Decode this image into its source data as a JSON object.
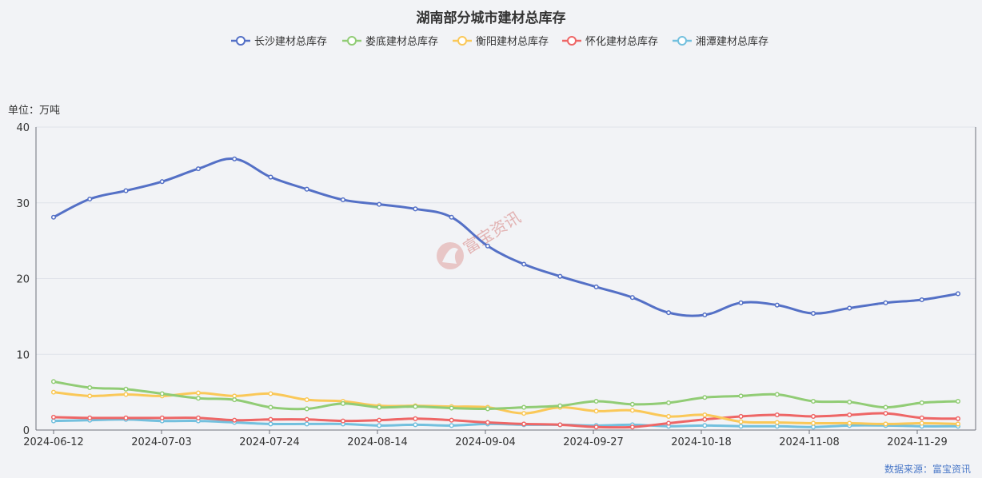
{
  "chart_data": {
    "type": "line",
    "title": "湖南部分城市建材总库存",
    "unit_label": "单位：万吨",
    "source": "数据来源：富宝资讯",
    "watermark": "富宝资讯",
    "ylim": [
      0,
      40
    ],
    "yticks": [
      0,
      10,
      20,
      30,
      40
    ],
    "xtick_labels": [
      "2024-06-12",
      "2024-07-03",
      "2024-07-24",
      "2024-08-14",
      "2024-09-04",
      "2024-09-27",
      "2024-10-18",
      "2024-11-08",
      "2024-11-29"
    ],
    "x": [
      "2024-06-12",
      "2024-06-19",
      "2024-06-26",
      "2024-07-03",
      "2024-07-10",
      "2024-07-17",
      "2024-07-24",
      "2024-07-31",
      "2024-08-07",
      "2024-08-14",
      "2024-08-21",
      "2024-08-28",
      "2024-09-04",
      "2024-09-11",
      "2024-09-18",
      "2024-09-27",
      "2024-10-04",
      "2024-10-11",
      "2024-10-18",
      "2024-10-25",
      "2024-11-01",
      "2024-11-08",
      "2024-11-15",
      "2024-11-22",
      "2024-11-29",
      "2024-12-06"
    ],
    "series": [
      {
        "name": "长沙建材总库存",
        "color": "#5470c6",
        "values": [
          28.1,
          30.5,
          31.6,
          32.8,
          34.5,
          35.8,
          33.4,
          31.8,
          30.4,
          29.8,
          29.2,
          28.1,
          24.3,
          21.9,
          20.3,
          18.9,
          17.5,
          15.5,
          15.2,
          16.8,
          16.5,
          15.4,
          16.1,
          16.8,
          17.2,
          18.0
        ]
      },
      {
        "name": "娄底建材总库存",
        "color": "#91cc75",
        "values": [
          6.4,
          5.6,
          5.4,
          4.8,
          4.2,
          4.0,
          3.0,
          2.8,
          3.5,
          3.0,
          3.1,
          2.9,
          2.8,
          3.0,
          3.2,
          3.8,
          3.4,
          3.6,
          4.3,
          4.5,
          4.7,
          3.8,
          3.7,
          3.0,
          3.6,
          3.8
        ]
      },
      {
        "name": "衡阳建材总库存",
        "color": "#fac858",
        "values": [
          5.0,
          4.5,
          4.7,
          4.5,
          4.9,
          4.5,
          4.8,
          4.0,
          3.8,
          3.2,
          3.2,
          3.1,
          3.0,
          2.2,
          3.0,
          2.5,
          2.6,
          1.8,
          2.0,
          1.1,
          1.0,
          0.9,
          0.9,
          0.8,
          0.9,
          0.8
        ]
      },
      {
        "name": "怀化建材总库存",
        "color": "#ee6666",
        "values": [
          1.7,
          1.6,
          1.6,
          1.6,
          1.6,
          1.3,
          1.4,
          1.4,
          1.2,
          1.3,
          1.5,
          1.3,
          1.0,
          0.8,
          0.7,
          0.4,
          0.4,
          0.9,
          1.4,
          1.8,
          2.0,
          1.8,
          2.0,
          2.2,
          1.6,
          1.5
        ]
      },
      {
        "name": "湘潭建材总库存",
        "color": "#73c0de",
        "values": [
          1.2,
          1.3,
          1.4,
          1.2,
          1.2,
          1.0,
          0.8,
          0.8,
          0.8,
          0.6,
          0.7,
          0.6,
          0.8,
          0.7,
          0.7,
          0.6,
          0.7,
          0.5,
          0.6,
          0.5,
          0.5,
          0.4,
          0.6,
          0.6,
          0.5,
          0.5
        ]
      }
    ],
    "legend_position": "top-center",
    "grid": "horizontal"
  }
}
